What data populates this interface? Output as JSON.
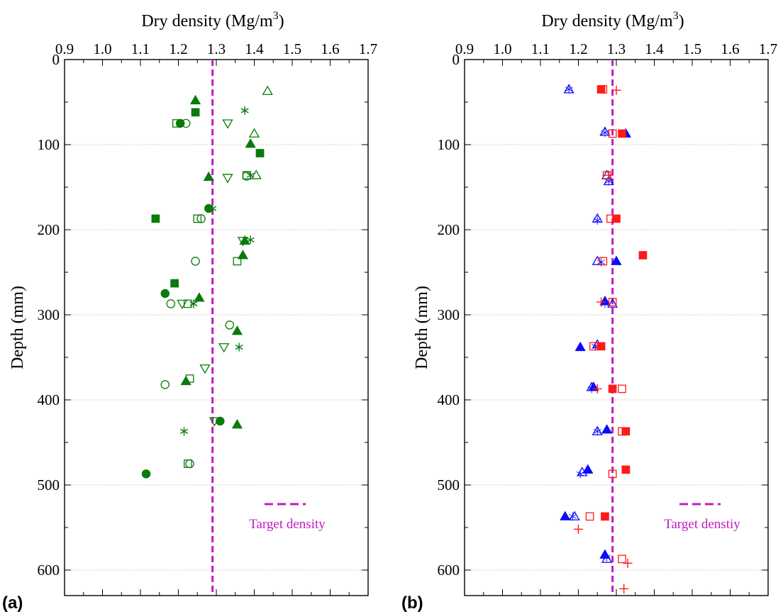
{
  "colors": {
    "panel_a": "#0a7a0a",
    "panel_b_blue": "#0a0aff",
    "panel_b_red": "#ff1a1a",
    "target": "#c21bc2"
  },
  "chart_data": [
    {
      "type": "scatter",
      "panel_label": "(a)",
      "xlabel": "Dry density (Mg/m",
      "xlabel_sup": "3",
      "xlabel_end": ")",
      "ylabel": "Depth (mm)",
      "xlim": [
        0.9,
        1.7
      ],
      "ylim": [
        0,
        630
      ],
      "y_inverted": true,
      "x_axis_position": "top",
      "xticks": [
        "0.9",
        "1.0",
        "1.1",
        "1.2",
        "1.3",
        "1.4",
        "1.5",
        "1.6",
        "1.7"
      ],
      "yticks": [
        "0",
        "100",
        "200",
        "300",
        "400",
        "500",
        "600"
      ],
      "grid": "horizontal dotted",
      "target_density": 1.29,
      "legend": {
        "label": "Target density",
        "placement": "bottom-right"
      },
      "series": [
        {
          "marker": "triangle-up-filled",
          "color": "green",
          "points": [
            [
              1.245,
              48
            ],
            [
              1.39,
              99
            ],
            [
              1.28,
              138
            ],
            [
              1.375,
              213
            ],
            [
              1.37,
              230
            ],
            [
              1.255,
              280
            ],
            [
              1.355,
              319
            ],
            [
              1.22,
              378
            ],
            [
              1.355,
              429
            ]
          ]
        },
        {
          "marker": "square-filled",
          "color": "green",
          "points": [
            [
              1.245,
              62
            ],
            [
              1.415,
              110
            ],
            [
              1.14,
              187
            ],
            [
              1.19,
              263
            ]
          ]
        },
        {
          "marker": "circle-filled",
          "color": "green",
          "points": [
            [
              1.205,
              75
            ],
            [
              1.28,
              175
            ],
            [
              1.165,
              275
            ],
            [
              1.31,
              425
            ],
            [
              1.115,
              487
            ]
          ]
        },
        {
          "marker": "triangle-up-open",
          "color": "green",
          "points": [
            [
              1.435,
              37
            ],
            [
              1.4,
              87
            ],
            [
              1.405,
              136
            ]
          ]
        },
        {
          "marker": "triangle-down-open",
          "color": "green",
          "points": [
            [
              1.33,
              75
            ],
            [
              1.33,
              139
            ],
            [
              1.37,
              213
            ],
            [
              1.21,
              287
            ],
            [
              1.32,
              338
            ],
            [
              1.27,
              363
            ],
            [
              1.295,
              425
            ]
          ]
        },
        {
          "marker": "square-open",
          "color": "green",
          "points": [
            [
              1.195,
              75
            ],
            [
              1.38,
              136
            ],
            [
              1.25,
              187
            ],
            [
              1.355,
              237
            ],
            [
              1.225,
              287
            ],
            [
              1.23,
              375
            ],
            [
              1.225,
              475
            ]
          ]
        },
        {
          "marker": "circle-open",
          "color": "green",
          "points": [
            [
              1.22,
              75
            ],
            [
              1.38,
              137
            ],
            [
              1.26,
              187
            ],
            [
              1.245,
              237
            ],
            [
              1.18,
              287
            ],
            [
              1.335,
              312
            ],
            [
              1.165,
              382
            ],
            [
              1.23,
              475
            ]
          ]
        },
        {
          "marker": "asterisk",
          "color": "green",
          "points": [
            [
              1.375,
              60
            ],
            [
              1.39,
              136
            ],
            [
              1.29,
              175
            ],
            [
              1.39,
              212
            ],
            [
              1.24,
              287
            ],
            [
              1.36,
              338
            ],
            [
              1.215,
              437
            ]
          ]
        }
      ]
    },
    {
      "type": "scatter",
      "panel_label": "(b)",
      "xlabel": "Dry density (Mg/m",
      "xlabel_sup": "3",
      "xlabel_end": ")",
      "ylabel": "Depth (mm)",
      "xlim": [
        0.9,
        1.7
      ],
      "ylim": [
        0,
        630
      ],
      "y_inverted": true,
      "x_axis_position": "top",
      "xticks": [
        "0.9",
        "1.0",
        "1.1",
        "1.2",
        "1.3",
        "1.4",
        "1.5",
        "1.6",
        "1.7"
      ],
      "yticks": [
        "0",
        "100",
        "200",
        "300",
        "400",
        "500",
        "600"
      ],
      "grid": "horizontal dotted",
      "target_density": 1.29,
      "legend": {
        "label": "Target denstiy",
        "placement": "bottom-right"
      },
      "series": [
        {
          "marker": "triangle-up-filled",
          "color": "blue",
          "points": [
            [
              1.325,
              87
            ],
            [
              1.3,
              237
            ],
            [
              1.27,
              284
            ],
            [
              1.205,
              338
            ],
            [
              1.24,
              385
            ],
            [
              1.275,
              435
            ],
            [
              1.225,
              482
            ],
            [
              1.165,
              537
            ],
            [
              1.27,
              582
            ]
          ]
        },
        {
          "marker": "triangle-up-open",
          "color": "blue",
          "points": [
            [
              1.175,
              35
            ],
            [
              1.27,
              85
            ],
            [
              1.275,
              136
            ],
            [
              1.28,
              143
            ],
            [
              1.25,
              187
            ],
            [
              1.25,
              237
            ],
            [
              1.29,
              287
            ],
            [
              1.25,
              335
            ],
            [
              1.235,
              385
            ],
            [
              1.25,
              437
            ],
            [
              1.21,
              485
            ],
            [
              1.19,
              537
            ],
            [
              1.275,
              587
            ]
          ]
        },
        {
          "marker": "asterisk-thin",
          "color": "blue",
          "points": [
            [
              1.175,
              35
            ],
            [
              1.27,
              86
            ],
            [
              1.28,
              143
            ],
            [
              1.25,
              189
            ],
            [
              1.26,
              238
            ],
            [
              1.27,
              287
            ],
            [
              1.245,
              337
            ],
            [
              1.235,
              387
            ],
            [
              1.25,
              437
            ],
            [
              1.205,
              487
            ],
            [
              1.185,
              537
            ],
            [
              1.275,
              585
            ]
          ]
        },
        {
          "marker": "square-filled",
          "color": "red",
          "points": [
            [
              1.26,
              35
            ],
            [
              1.315,
              87
            ],
            [
              1.3,
              187
            ],
            [
              1.37,
              230
            ],
            [
              1.26,
              337
            ],
            [
              1.29,
              387
            ],
            [
              1.325,
              437
            ],
            [
              1.325,
              482
            ],
            [
              1.27,
              537
            ]
          ]
        },
        {
          "marker": "square-open",
          "color": "red",
          "points": [
            [
              1.265,
              35
            ],
            [
              1.29,
              87
            ],
            [
              1.275,
              136
            ],
            [
              1.285,
              187
            ],
            [
              1.265,
              237
            ],
            [
              1.29,
              285
            ],
            [
              1.24,
              337
            ],
            [
              1.315,
              387
            ],
            [
              1.315,
              437
            ],
            [
              1.29,
              487
            ],
            [
              1.23,
              537
            ],
            [
              1.315,
              587
            ]
          ]
        },
        {
          "marker": "plus",
          "color": "red",
          "points": [
            [
              1.3,
              36
            ],
            [
              1.28,
              136
            ],
            [
              1.26,
              285
            ],
            [
              1.25,
              387
            ],
            [
              1.2,
              552
            ],
            [
              1.33,
              592
            ],
            [
              1.32,
              622
            ]
          ]
        }
      ]
    }
  ]
}
